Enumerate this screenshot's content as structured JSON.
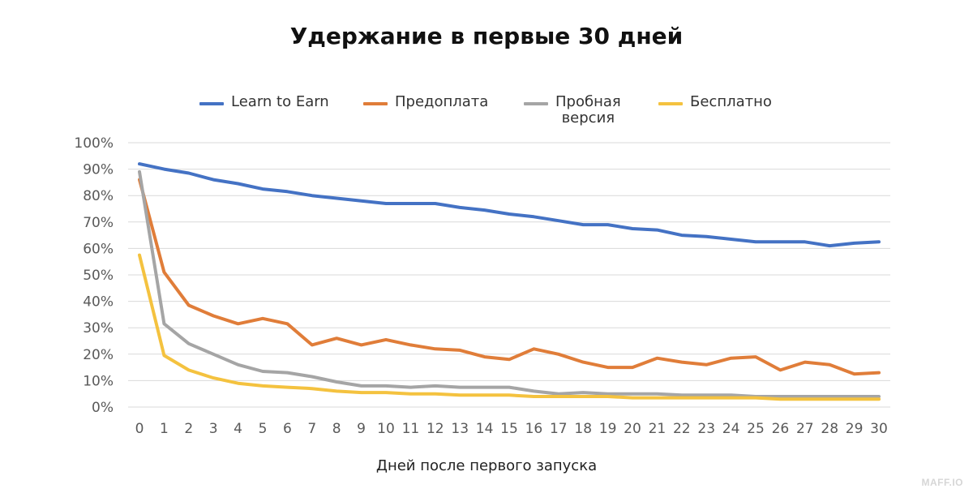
{
  "chart_data": {
    "type": "line",
    "title": "Удержание в первые 30 дней",
    "xlabel": "Дней после первого запуска",
    "ylabel": "",
    "ylim": [
      0,
      100
    ],
    "y_ticks": [
      "0%",
      "10%",
      "20%",
      "30%",
      "40%",
      "50%",
      "60%",
      "70%",
      "80%",
      "90%",
      "100%"
    ],
    "x": [
      0,
      1,
      2,
      3,
      4,
      5,
      6,
      7,
      8,
      9,
      10,
      11,
      12,
      13,
      14,
      15,
      16,
      17,
      18,
      19,
      20,
      21,
      22,
      23,
      24,
      25,
      26,
      27,
      28,
      29,
      30
    ],
    "grid": "horizontal",
    "legend_position": "top",
    "series": [
      {
        "name": "Learn to Earn",
        "color": "#4472C4",
        "values": [
          92,
          90,
          88.5,
          86,
          84.5,
          82.5,
          81.5,
          80,
          79,
          78,
          77,
          77,
          77,
          75.5,
          74.5,
          73,
          72,
          70.5,
          69,
          69,
          67.5,
          67,
          65,
          64.5,
          63.5,
          62.5,
          62.5,
          62.5,
          61,
          62,
          62.5
        ]
      },
      {
        "name": "Предоплата",
        "color": "#E07D39",
        "values": [
          86,
          51,
          38.5,
          34.5,
          31.5,
          33.5,
          31.5,
          23.5,
          26,
          23.5,
          25.5,
          23.5,
          22,
          21.5,
          19,
          18,
          22,
          20,
          17,
          15,
          15,
          18.5,
          17,
          16,
          18.5,
          19,
          14,
          17,
          16,
          12.5,
          13
        ]
      },
      {
        "name": "Пробная версия",
        "color": "#A5A5A5",
        "values": [
          89,
          31.5,
          24,
          20,
          16,
          13.5,
          13,
          11.5,
          9.5,
          8,
          8,
          7.5,
          8,
          7.5,
          7.5,
          7.5,
          6,
          5,
          5.5,
          5,
          5,
          5,
          4.5,
          4.5,
          4.5,
          4,
          4,
          4,
          4,
          4,
          4
        ]
      },
      {
        "name": "Бесплатно",
        "color": "#F4C23F",
        "values": [
          57.5,
          19.5,
          14,
          11,
          9,
          8,
          7.5,
          7,
          6,
          5.5,
          5.5,
          5,
          5,
          4.5,
          4.5,
          4.5,
          4,
          4,
          4,
          4,
          3.5,
          3.5,
          3.5,
          3.5,
          3.5,
          3.5,
          3,
          3,
          3,
          3,
          3
        ]
      }
    ]
  },
  "legend": {
    "items": [
      {
        "label": "Learn to Earn",
        "color": "#4472C4"
      },
      {
        "label": "Предоплата",
        "color": "#E07D39"
      },
      {
        "label": "Пробная\nверсия",
        "color": "#A5A5A5"
      },
      {
        "label": "Бесплатно",
        "color": "#F4C23F"
      }
    ]
  },
  "watermark": "MAFF.IO"
}
